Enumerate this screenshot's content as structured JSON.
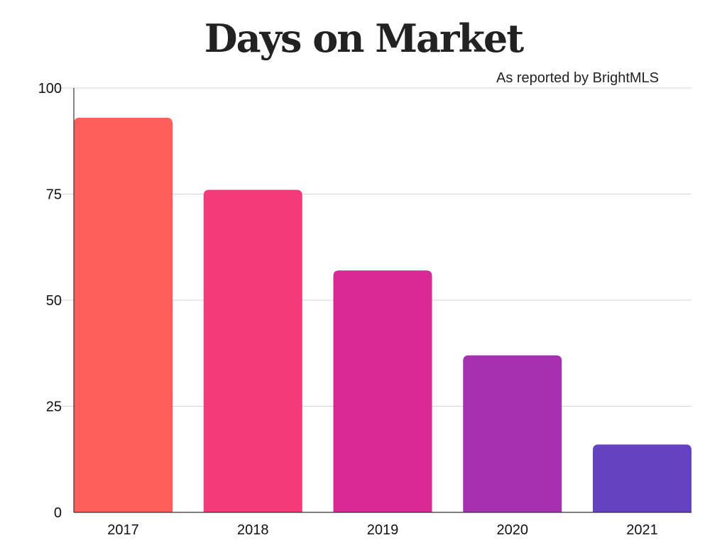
{
  "chart_data": {
    "type": "bar",
    "title": "Days on Market",
    "subtitle": "As reported by BrightMLS",
    "categories": [
      "2017",
      "2018",
      "2019",
      "2020",
      "2021"
    ],
    "values": [
      93,
      76,
      57,
      37,
      16
    ],
    "colors": [
      "#fe5f5a",
      "#f23a78",
      "#d72896",
      "#a730b0",
      "#6443c0"
    ],
    "ylim": [
      0,
      100
    ],
    "yticks": [
      "0",
      "25",
      "50",
      "75",
      "100"
    ],
    "grid": true,
    "xlabel": "",
    "ylabel": ""
  }
}
